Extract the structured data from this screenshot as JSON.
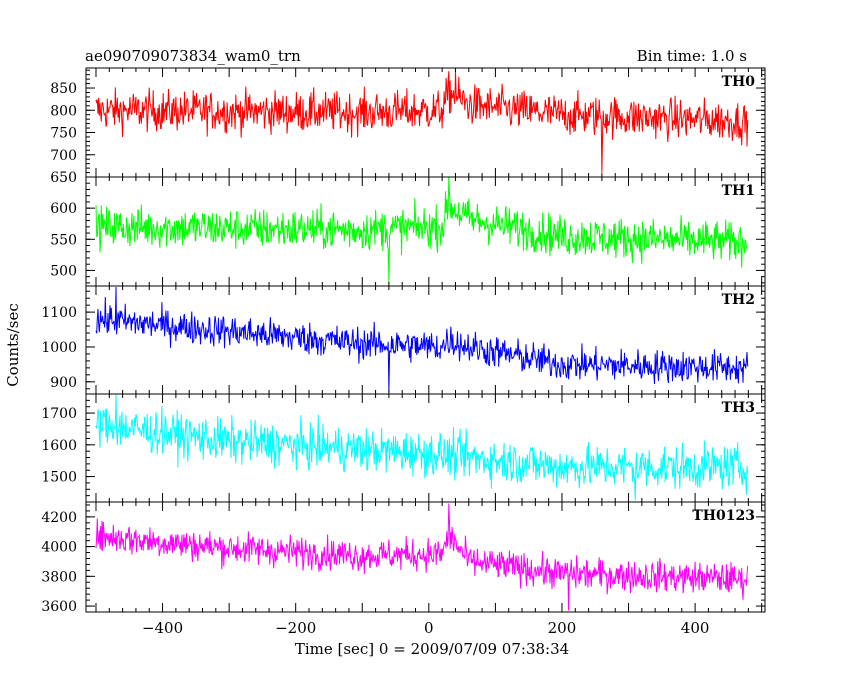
{
  "header": {
    "title": "ae090709073834_wam0_trn",
    "bin_time": "Bin time: 1.0 s"
  },
  "chart_data": {
    "type": "line",
    "xlabel": "Time [sec] 0 = 2009/07/09 07:38:34",
    "ylabel": "Counts/sec",
    "xlim": [
      -515,
      505
    ],
    "x_ticks": [
      -400,
      -200,
      0,
      200,
      400
    ],
    "x_tick_labels": [
      "−400",
      "−200",
      "0",
      "200",
      "400"
    ],
    "x_range_data": [
      -500,
      479
    ],
    "grid": false,
    "panels": [
      {
        "name": "TH0",
        "color": "#ff0000",
        "ylim": [
          650,
          895
        ],
        "yticks": [
          650,
          700,
          750,
          800,
          850
        ],
        "ytick_labels": [
          "650",
          "700",
          "750",
          "800",
          "850"
        ],
        "profile": [
          [
            -500,
            800
          ],
          [
            -100,
            795
          ],
          [
            20,
            800
          ],
          [
            30,
            840
          ],
          [
            60,
            812
          ],
          [
            200,
            790
          ],
          [
            479,
            775
          ]
        ],
        "noise": 32,
        "peak": [
          40,
          890
        ],
        "trough": [
          260,
          660
        ]
      },
      {
        "name": "TH1",
        "color": "#00ff00",
        "ylim": [
          475,
          650
        ],
        "yticks": [
          500,
          550,
          600
        ],
        "ytick_labels": [
          "500",
          "550",
          "600"
        ],
        "profile": [
          [
            -500,
            570
          ],
          [
            -100,
            565
          ],
          [
            20,
            570
          ],
          [
            30,
            605
          ],
          [
            60,
            582
          ],
          [
            200,
            555
          ],
          [
            479,
            545
          ]
        ],
        "noise": 23,
        "peak": [
          30,
          650
        ],
        "trough": [
          -60,
          478
        ]
      },
      {
        "name": "TH2",
        "color": "#0000ff",
        "ylim": [
          865,
          1175
        ],
        "yticks": [
          900,
          1000,
          1100
        ],
        "ytick_labels": [
          "900",
          "1000",
          "1100"
        ],
        "profile": [
          [
            -500,
            1080
          ],
          [
            -300,
            1045
          ],
          [
            -100,
            1010
          ],
          [
            20,
            1000
          ],
          [
            30,
            1020
          ],
          [
            60,
            1000
          ],
          [
            200,
            950
          ],
          [
            479,
            940
          ]
        ],
        "noise": 33,
        "peak": [
          -470,
          1172
        ],
        "trough": [
          -60,
          870
        ]
      },
      {
        "name": "TH3",
        "color": "#00ffff",
        "ylim": [
          1420,
          1760
        ],
        "yticks": [
          1500,
          1600,
          1700
        ],
        "ytick_labels": [
          "1500",
          "1600",
          "1700"
        ],
        "profile": [
          [
            -500,
            1665
          ],
          [
            -300,
            1610
          ],
          [
            -100,
            1585
          ],
          [
            20,
            1570
          ],
          [
            60,
            1560
          ],
          [
            200,
            1530
          ],
          [
            479,
            1530
          ]
        ],
        "noise": 48,
        "peak": [
          -470,
          1758
        ],
        "trough": [
          310,
          1425
        ]
      },
      {
        "name": "TH0123",
        "color": "#ff00ff",
        "ylim": [
          3560,
          4300
        ],
        "yticks": [
          3600,
          3800,
          4000,
          4200
        ],
        "ytick_labels": [
          "3600",
          "3800",
          "4000",
          "4200"
        ],
        "profile": [
          [
            -500,
            4070
          ],
          [
            -300,
            3990
          ],
          [
            -100,
            3940
          ],
          [
            20,
            3950
          ],
          [
            30,
            4080
          ],
          [
            60,
            3900
          ],
          [
            200,
            3820
          ],
          [
            479,
            3780
          ]
        ],
        "noise": 75,
        "peak": [
          30,
          4290
        ],
        "trough": [
          210,
          3570
        ]
      }
    ]
  }
}
